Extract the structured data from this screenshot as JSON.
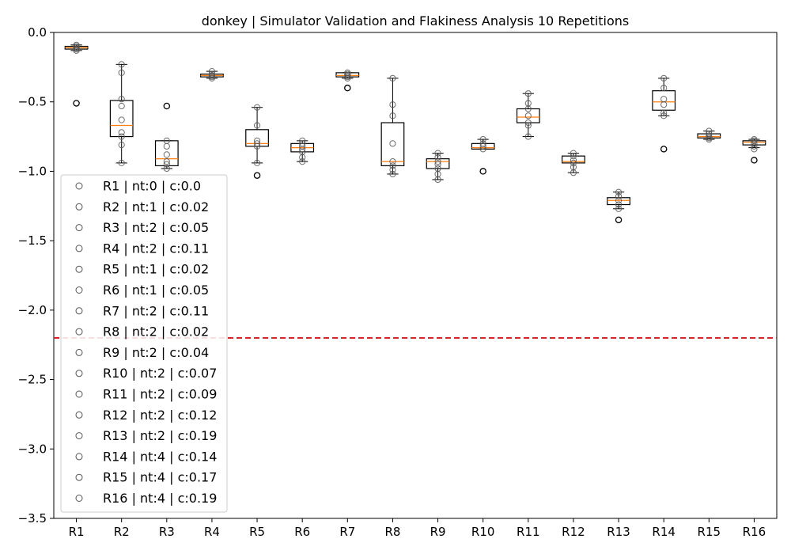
{
  "chart_data": {
    "type": "box",
    "title": "donkey | Simulator Validation and Flakiness Analysis 10 Repetitions",
    "xlabel": "",
    "ylabel": "",
    "ylim": [
      -3.5,
      0.0
    ],
    "yticks": [
      "0.0",
      "−0.5",
      "−1.0",
      "−1.5",
      "−2.0",
      "−2.5",
      "−3.0",
      "−3.5"
    ],
    "ytick_values": [
      0.0,
      -0.5,
      -1.0,
      -1.5,
      -2.0,
      -2.5,
      -3.0,
      -3.5
    ],
    "categories": [
      "R1",
      "R2",
      "R3",
      "R4",
      "R5",
      "R6",
      "R7",
      "R8",
      "R9",
      "R10",
      "R11",
      "R12",
      "R13",
      "R14",
      "R15",
      "R16"
    ],
    "threshold": {
      "y": -2.2,
      "color": "#d62728",
      "style": "dashed"
    },
    "legend": {
      "location": "left",
      "entries": [
        "R1 | nt:0 | c:0.0",
        "R2 | nt:1 | c:0.02",
        "R3 | nt:2 | c:0.05",
        "R4 | nt:2 | c:0.11",
        "R5 | nt:1 | c:0.02",
        "R6 | nt:1 | c:0.05",
        "R7 | nt:2 | c:0.11",
        "R8 | nt:2 | c:0.02",
        "R9 | nt:2 | c:0.04",
        "R10 | nt:2 | c:0.07",
        "R11 | nt:2 | c:0.09",
        "R12 | nt:2 | c:0.12",
        "R13 | nt:2 | c:0.19",
        "R14 | nt:4 | c:0.14",
        "R15 | nt:4 | c:0.17",
        "R16 | nt:4 | c:0.19"
      ]
    },
    "colors": {
      "box": "#000000",
      "median": "#ff7f0e",
      "points": "#555555",
      "threshold": "#d62728"
    },
    "boxes": [
      {
        "name": "R1",
        "q1": -0.12,
        "median": -0.11,
        "q3": -0.1,
        "whisker_low": -0.13,
        "whisker_high": -0.09,
        "fliers": [
          -0.51
        ],
        "points": [
          -0.09,
          -0.1,
          -0.11,
          -0.11,
          -0.12,
          -0.13
        ]
      },
      {
        "name": "R2",
        "q1": -0.75,
        "median": -0.67,
        "q3": -0.49,
        "whisker_low": -0.94,
        "whisker_high": -0.23,
        "fliers": [],
        "points": [
          -0.23,
          -0.29,
          -0.48,
          -0.53,
          -0.63,
          -0.72,
          -0.75,
          -0.81,
          -0.94
        ]
      },
      {
        "name": "R3",
        "q1": -0.96,
        "median": -0.91,
        "q3": -0.78,
        "whisker_low": -0.98,
        "whisker_high": -0.78,
        "fliers": [
          -0.53
        ],
        "points": [
          -0.78,
          -0.82,
          -0.88,
          -0.93,
          -0.95,
          -0.98
        ]
      },
      {
        "name": "R4",
        "q1": -0.32,
        "median": -0.31,
        "q3": -0.3,
        "whisker_low": -0.33,
        "whisker_high": -0.28,
        "fliers": [],
        "points": [
          -0.28,
          -0.3,
          -0.31,
          -0.32,
          -0.33
        ]
      },
      {
        "name": "R5",
        "q1": -0.82,
        "median": -0.8,
        "q3": -0.7,
        "whisker_low": -0.94,
        "whisker_high": -0.54,
        "fliers": [
          -1.03
        ],
        "points": [
          -0.54,
          -0.67,
          -0.78,
          -0.8,
          -0.82,
          -0.94
        ]
      },
      {
        "name": "R6",
        "q1": -0.86,
        "median": -0.83,
        "q3": -0.8,
        "whisker_low": -0.93,
        "whisker_high": -0.78,
        "fliers": [],
        "points": [
          -0.78,
          -0.8,
          -0.82,
          -0.84,
          -0.86,
          -0.9,
          -0.93
        ]
      },
      {
        "name": "R7",
        "q1": -0.32,
        "median": -0.31,
        "q3": -0.29,
        "whisker_low": -0.33,
        "whisker_high": -0.29,
        "fliers": [
          -0.4
        ],
        "points": [
          -0.29,
          -0.3,
          -0.31,
          -0.32,
          -0.33
        ]
      },
      {
        "name": "R8",
        "q1": -0.96,
        "median": -0.93,
        "q3": -0.65,
        "whisker_low": -1.02,
        "whisker_high": -0.33,
        "fliers": [],
        "points": [
          -0.33,
          -0.52,
          -0.6,
          -0.8,
          -0.93,
          -0.96,
          -0.99,
          -1.02
        ]
      },
      {
        "name": "R9",
        "q1": -0.98,
        "median": -0.93,
        "q3": -0.91,
        "whisker_low": -1.06,
        "whisker_high": -0.87,
        "fliers": [],
        "points": [
          -0.87,
          -0.9,
          -0.93,
          -0.95,
          -0.98,
          -1.02,
          -1.06
        ]
      },
      {
        "name": "R10",
        "q1": -0.84,
        "median": -0.83,
        "q3": -0.8,
        "whisker_low": -0.84,
        "whisker_high": -0.77,
        "fliers": [
          -1.0
        ],
        "points": [
          -0.77,
          -0.8,
          -0.82,
          -0.84
        ]
      },
      {
        "name": "R11",
        "q1": -0.65,
        "median": -0.61,
        "q3": -0.55,
        "whisker_low": -0.75,
        "whisker_high": -0.44,
        "fliers": [],
        "points": [
          -0.44,
          -0.51,
          -0.55,
          -0.6,
          -0.65,
          -0.67,
          -0.75
        ]
      },
      {
        "name": "R12",
        "q1": -0.94,
        "median": -0.93,
        "q3": -0.89,
        "whisker_low": -1.01,
        "whisker_high": -0.87,
        "fliers": [],
        "points": [
          -0.87,
          -0.89,
          -0.92,
          -0.94,
          -0.97,
          -1.01
        ]
      },
      {
        "name": "R13",
        "q1": -1.24,
        "median": -1.21,
        "q3": -1.19,
        "whisker_low": -1.27,
        "whisker_high": -1.15,
        "fliers": [
          -1.35
        ],
        "points": [
          -1.15,
          -1.18,
          -1.21,
          -1.24,
          -1.27
        ]
      },
      {
        "name": "R14",
        "q1": -0.56,
        "median": -0.5,
        "q3": -0.42,
        "whisker_low": -0.6,
        "whisker_high": -0.33,
        "fliers": [
          -0.84
        ],
        "points": [
          -0.33,
          -0.4,
          -0.48,
          -0.52,
          -0.58,
          -0.6
        ]
      },
      {
        "name": "R15",
        "q1": -0.76,
        "median": -0.75,
        "q3": -0.73,
        "whisker_low": -0.77,
        "whisker_high": -0.71,
        "fliers": [],
        "points": [
          -0.71,
          -0.73,
          -0.75,
          -0.76,
          -0.77
        ]
      },
      {
        "name": "R16",
        "q1": -0.81,
        "median": -0.79,
        "q3": -0.78,
        "whisker_low": -0.83,
        "whisker_high": -0.77,
        "fliers": [
          -0.92
        ],
        "points": [
          -0.77,
          -0.78,
          -0.8,
          -0.82,
          -0.84
        ]
      }
    ]
  }
}
